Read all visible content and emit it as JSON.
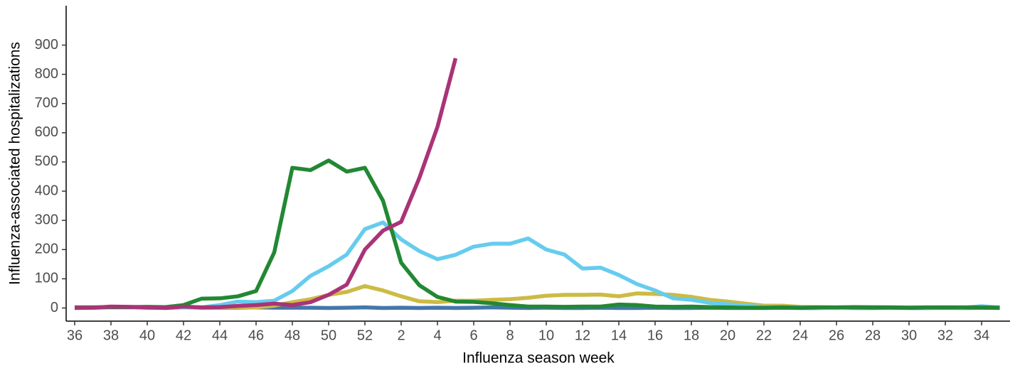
{
  "chart_data": {
    "type": "line",
    "xlabel": "Influenza season week",
    "ylabel": "Influenza-associated hospitalizations",
    "categories": [
      "36",
      null,
      "38",
      null,
      "40",
      null,
      "42",
      null,
      "44",
      null,
      "46",
      null,
      "48",
      null,
      "50",
      null,
      "52",
      null,
      "2",
      null,
      "4",
      null,
      "6",
      null,
      "8",
      null,
      "10",
      null,
      "12",
      null,
      "14",
      null,
      "16",
      null,
      "18",
      null,
      "20",
      null,
      "22",
      null,
      "24",
      null,
      "26",
      null,
      "28",
      null,
      "30",
      null,
      "32",
      null,
      "34",
      null
    ],
    "ylim": [
      -45,
      1035
    ],
    "yticks": [
      0,
      100,
      200,
      300,
      400,
      500,
      600,
      700,
      800,
      900
    ],
    "series": [
      {
        "color": "#4477aa",
        "values": [
          1,
          1,
          2,
          2,
          1,
          1,
          2,
          1,
          1,
          1,
          2,
          1,
          1,
          1,
          0,
          1,
          2,
          0,
          1,
          0,
          1,
          0,
          1,
          2,
          1,
          0,
          1,
          0,
          0,
          1,
          0,
          0,
          1,
          0,
          0,
          1,
          0,
          0,
          0,
          1,
          0,
          0,
          1,
          0,
          0,
          1,
          0,
          0,
          1,
          0,
          1,
          0
        ]
      },
      {
        "color": "#ccbb44",
        "values": [
          2,
          2,
          2,
          2,
          2,
          2,
          2,
          2,
          2,
          2,
          2,
          8,
          20,
          30,
          45,
          55,
          75,
          60,
          40,
          23,
          20,
          25,
          25,
          28,
          30,
          35,
          42,
          45,
          45,
          46,
          40,
          50,
          48,
          45,
          38,
          28,
          22,
          15,
          8,
          8,
          4,
          3,
          2,
          2,
          2,
          2,
          2,
          2,
          2,
          2,
          2,
          2
        ]
      },
      {
        "color": "#66ccee",
        "values": [
          2,
          2,
          2,
          2,
          2,
          2,
          2,
          2,
          10,
          22,
          20,
          25,
          58,
          110,
          143,
          183,
          270,
          293,
          235,
          195,
          167,
          182,
          210,
          220,
          220,
          238,
          200,
          183,
          135,
          138,
          113,
          82,
          60,
          33,
          28,
          18,
          13,
          8,
          3,
          3,
          2,
          1,
          0,
          2,
          3,
          2,
          2,
          1,
          2,
          1,
          6,
          2
        ]
      },
      {
        "color": "#228833",
        "values": [
          2,
          2,
          3,
          3,
          4,
          3,
          10,
          32,
          33,
          40,
          58,
          190,
          480,
          472,
          505,
          467,
          480,
          367,
          155,
          78,
          38,
          22,
          21,
          16,
          10,
          5,
          5,
          4,
          5,
          5,
          12,
          10,
          5,
          4,
          5,
          3,
          2,
          1,
          1,
          2,
          1,
          2,
          2,
          3,
          2,
          2,
          1,
          2,
          2,
          2,
          2,
          1
        ]
      },
      {
        "color": "#aa3377",
        "values": [
          0,
          1,
          5,
          4,
          2,
          0,
          5,
          2,
          3,
          7,
          10,
          15,
          10,
          20,
          45,
          80,
          200,
          265,
          295,
          445,
          620,
          855,
          null,
          null,
          null,
          null,
          null,
          null,
          null,
          null,
          null,
          null,
          null,
          null,
          null,
          null,
          null,
          null,
          null,
          null,
          null,
          null,
          null,
          null,
          null,
          null,
          null,
          null,
          null,
          null,
          null,
          null
        ]
      }
    ]
  }
}
